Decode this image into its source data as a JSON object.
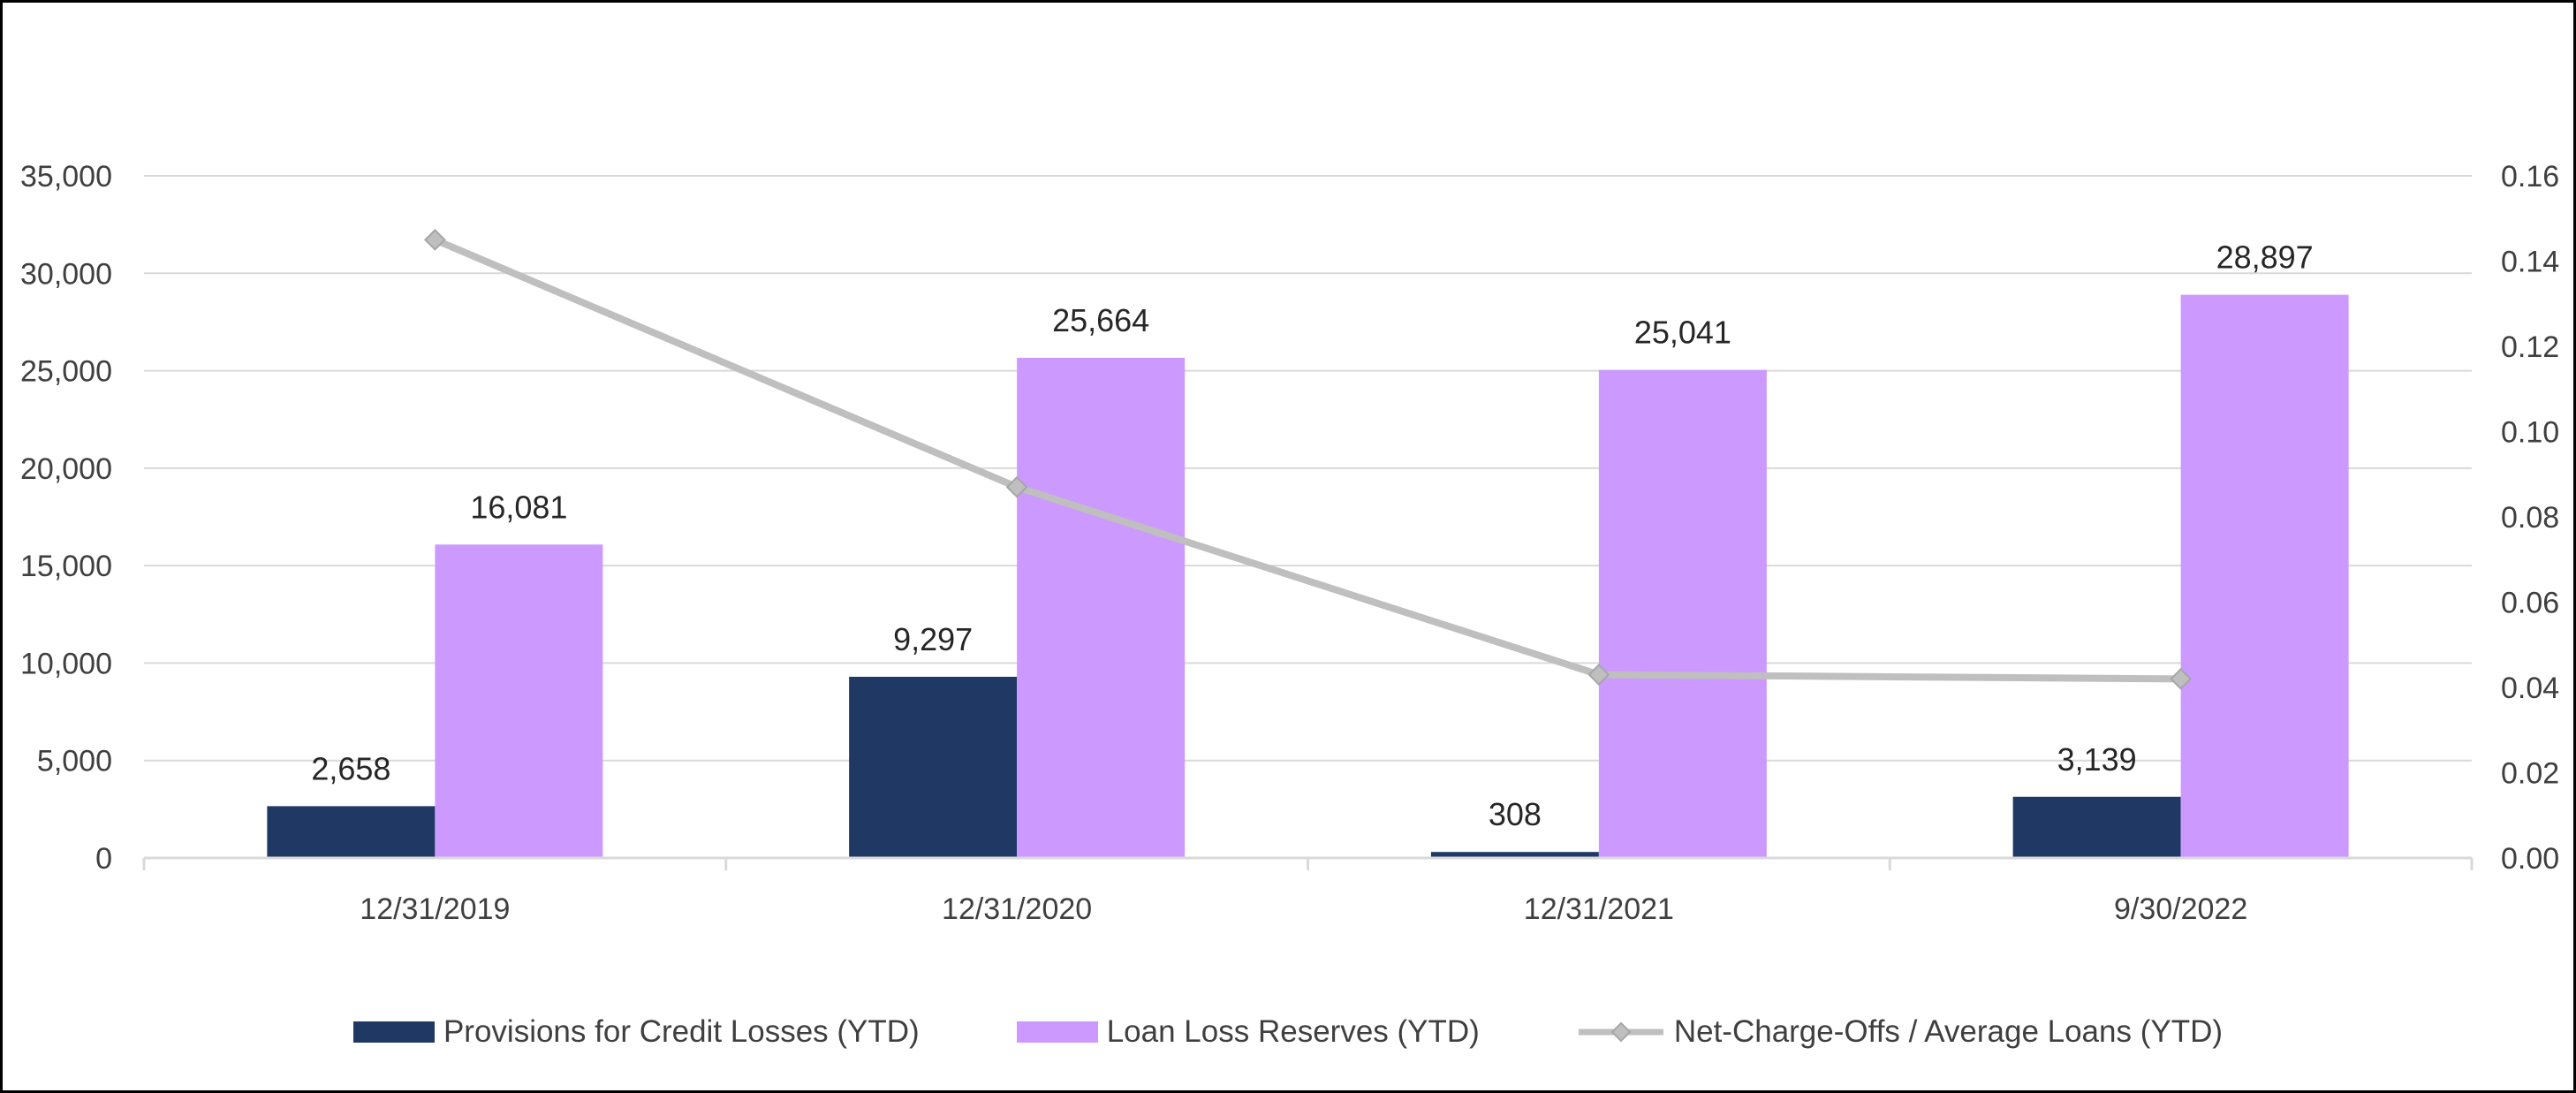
{
  "chart_data": {
    "type": "bar",
    "categories": [
      "12/31/2019",
      "12/31/2020",
      "12/31/2021",
      "9/30/2022"
    ],
    "y_left": {
      "min": 0,
      "max": 35000,
      "step": 5000,
      "tick_labels": [
        "0",
        "5,000",
        "10,000",
        "15,000",
        "20,000",
        "25,000",
        "30,000",
        "35,000"
      ]
    },
    "y_right": {
      "min": 0,
      "max": 0.16,
      "step": 0.02,
      "tick_labels": [
        "0.00",
        "0.02",
        "0.04",
        "0.06",
        "0.08",
        "0.10",
        "0.12",
        "0.14",
        "0.16"
      ]
    },
    "grid": true,
    "legend_position": "bottom",
    "series": [
      {
        "name": "Provisions for Credit Losses (YTD)",
        "type": "bar",
        "axis": "left",
        "color": "#203864",
        "values": [
          2658,
          9297,
          308,
          3139
        ],
        "labels": [
          "2,658",
          "9,297",
          "308",
          "3,139"
        ]
      },
      {
        "name": "Loan Loss Reserves (YTD)",
        "type": "bar",
        "axis": "left",
        "color": "#cc99ff",
        "values": [
          16081,
          25664,
          25041,
          28897
        ],
        "labels": [
          "16,081",
          "25,664",
          "25,041",
          "28,897"
        ]
      },
      {
        "name": "Net-Charge-Offs / Average Loans (YTD)",
        "type": "line",
        "axis": "right",
        "color": "#bfbfbf",
        "marker": "diamond",
        "values": [
          0.145,
          0.087,
          0.043,
          0.042
        ]
      }
    ]
  }
}
